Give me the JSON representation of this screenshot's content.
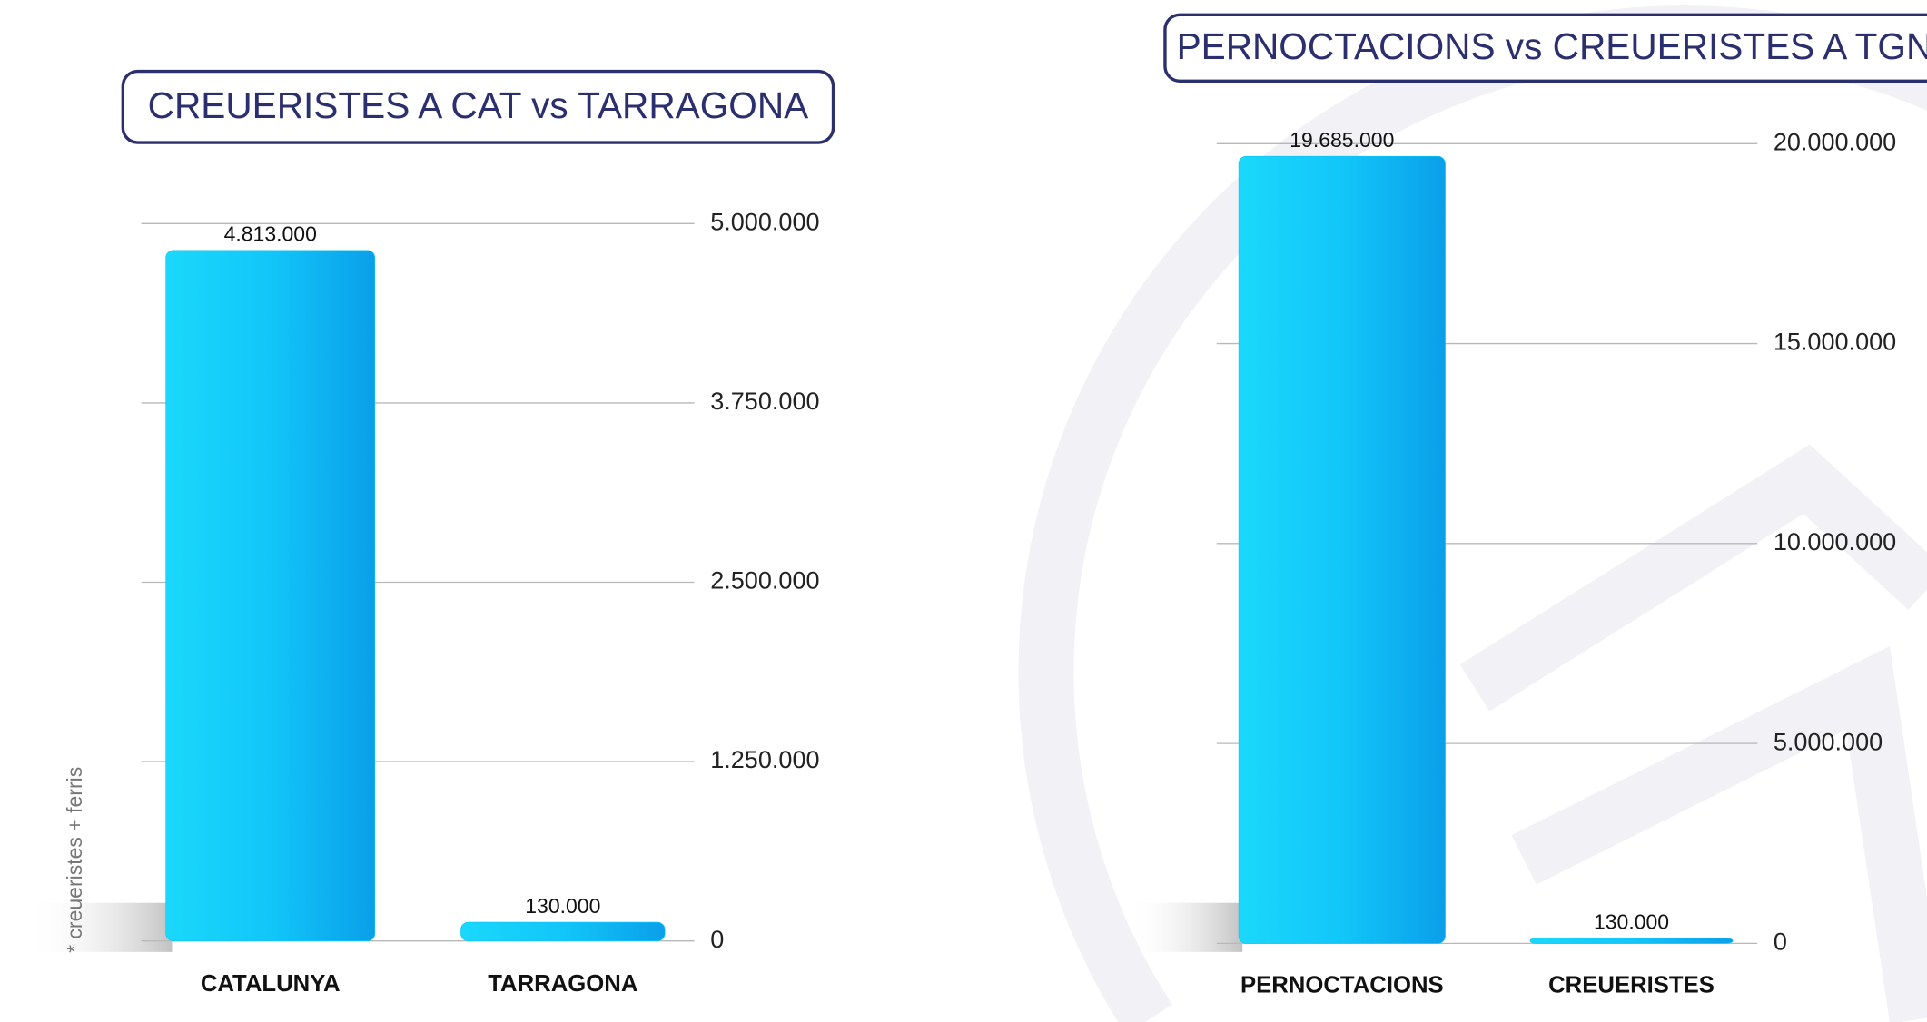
{
  "chart_data": [
    {
      "type": "bar",
      "title": "CREUERISTES A CAT vs TARRAGONA",
      "categories": [
        "CATALUNYA",
        "TARRAGONA"
      ],
      "values": [
        4813000,
        130000
      ],
      "value_labels": [
        "4.813.000",
        "130.000"
      ],
      "color": "#10c4f8",
      "ylim": [
        0,
        5000000
      ],
      "yticks": [
        0,
        {
          "value": 1250000,
          "label": "1.250.000"
        },
        {
          "value": 2500000,
          "label": "2.500.000"
        },
        {
          "value": 3750000,
          "label": "3.750.000"
        },
        {
          "value": 5000000,
          "label": "5.000.000"
        }
      ],
      "grid": true,
      "annotation": "* creueristes + ferris"
    },
    {
      "type": "bar",
      "title": "PERNOCTACIONS vs CREUERISTES A TGN",
      "categories": [
        "PERNOCTACIONS",
        "CREUERISTES"
      ],
      "values": [
        19685000,
        130000
      ],
      "value_labels": [
        "19.685.000",
        "130.000"
      ],
      "color": "#10c4f8",
      "ylim": [
        0,
        20000000
      ],
      "yticks": [
        0,
        {
          "value": 5000000,
          "label": "5.000.000"
        },
        {
          "value": 10000000,
          "label": "10.000.000"
        },
        {
          "value": 15000000,
          "label": "15.000.000"
        },
        {
          "value": 20000000,
          "label": "20.000.000"
        }
      ],
      "grid": true
    }
  ]
}
